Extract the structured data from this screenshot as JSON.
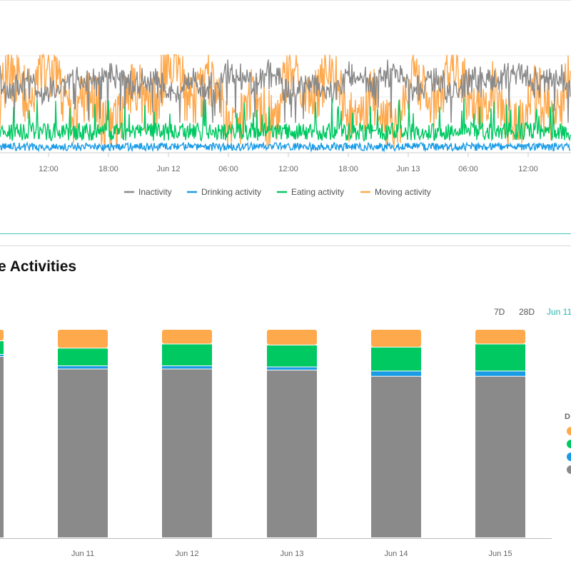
{
  "colors": {
    "inactivity": "#8a8a8a",
    "drinking": "#1a9be6",
    "eating": "#00c962",
    "moving": "#ffa94d",
    "accent": "#2bb5ad"
  },
  "section": {
    "title_fragment": "e Activities"
  },
  "range": {
    "btn_7d": "7D",
    "btn_28d": "28D",
    "btn_date": "Jun 11"
  },
  "right_legend": {
    "header_fragment": "D"
  },
  "chart_data": [
    {
      "type": "line",
      "x_ticks": [
        "12:00",
        "18:00",
        "Jun 12",
        "06:00",
        "12:00",
        "18:00",
        "Jun 13",
        "06:00",
        "12:00"
      ],
      "series": [
        {
          "name": "Inactivity",
          "color": "#8a8a8a"
        },
        {
          "name": "Drinking activity",
          "color": "#1a9be6"
        },
        {
          "name": "Eating activity",
          "color": "#00c962"
        },
        {
          "name": "Moving activity",
          "color": "#ffa94d"
        }
      ],
      "grid": true,
      "legend_position": "bottom"
    },
    {
      "type": "bar",
      "stacked": true,
      "categories": [
        "",
        "Jun 11",
        "Jun 12",
        "Jun 13",
        "Jun 14",
        "Jun 15"
      ],
      "x_labels": [
        "",
        "Jun 11",
        "Jun 12",
        "Jun 13",
        "Jun 14",
        "Jun 15"
      ],
      "ylim": [
        0,
        100
      ],
      "series": [
        {
          "key": "inactivity",
          "values": [
            87,
            81,
            81,
            80.5,
            77.5,
            77.5
          ]
        },
        {
          "key": "drinking",
          "values": [
            1,
            1.5,
            1.5,
            1.5,
            2.5,
            2.5
          ]
        },
        {
          "key": "eating",
          "values": [
            6.5,
            8.5,
            10.5,
            10.5,
            11.5,
            13
          ]
        },
        {
          "key": "moving",
          "values": [
            5.5,
            9,
            7,
            7.5,
            8.5,
            7
          ]
        }
      ],
      "legend_position": "right"
    }
  ]
}
